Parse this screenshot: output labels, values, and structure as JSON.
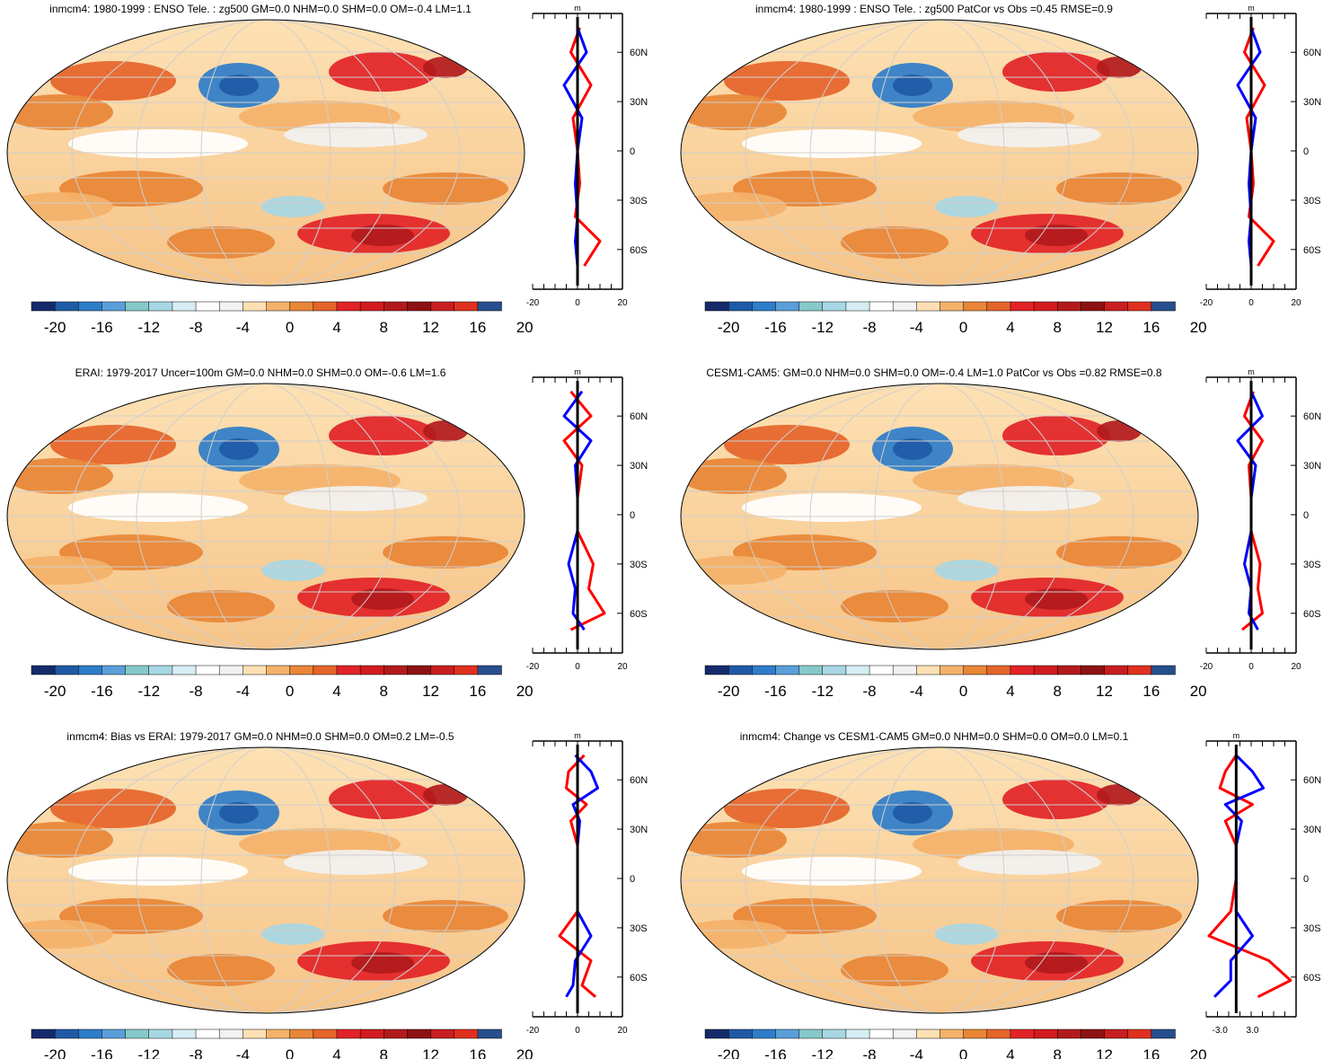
{
  "colorbar": {
    "tick_labels": [
      "-20",
      "-16",
      "-12",
      "-8",
      "-4",
      "0",
      "4",
      "8",
      "12",
      "16",
      "20"
    ],
    "colors": [
      "#152a6b",
      "#1f5aa6",
      "#2e7dc9",
      "#5a9fd9",
      "#86c9c9",
      "#a7d7e4",
      "#d6eef3",
      "#ffffff",
      "#f2f2f2",
      "#fde1b4",
      "#f4b26a",
      "#e88636",
      "#e5642a",
      "#e22327",
      "#d11b1f",
      "#b21a1c",
      "#8e1213",
      "#c81e1f",
      "#e0301f",
      "#274f8d"
    ]
  },
  "profile_axes": {
    "unit_label": "m",
    "lat_ticks": [
      "60N",
      "30N",
      "0",
      "30S",
      "60S"
    ]
  },
  "chart_data": [
    {
      "type": "heatmap",
      "title": "inmcm4: 1980-1999 : ENSO Tele. : zg500 GM=0.0 NHM=0.0 SHM=0.0 OM=-0.4 LM=1.1",
      "profile_xticks": [
        "-20",
        "0",
        "20"
      ],
      "profile_xlim": [
        -20,
        20
      ],
      "series": [
        {
          "name": "",
          "color": "#ff0000",
          "lat": [
            75,
            60,
            40,
            20,
            0,
            -20,
            -40,
            -55,
            -70
          ],
          "values": [
            1,
            -3,
            6,
            -2,
            0,
            1,
            -1,
            10,
            3
          ]
        },
        {
          "name": "",
          "color": "#0000ff",
          "lat": [
            75,
            60,
            40,
            20,
            0,
            -20,
            -40,
            -55,
            -70
          ],
          "values": [
            0,
            4,
            -6,
            2,
            0,
            -1,
            0,
            -1,
            0
          ]
        }
      ]
    },
    {
      "type": "heatmap",
      "title": "inmcm4: 1980-1999 : ENSO Tele. : zg500 PatCor vs Obs =0.45 RMSE=0.9",
      "profile_xticks": [
        "-20",
        "0",
        "20"
      ],
      "profile_xlim": [
        -20,
        20
      ],
      "series": [
        {
          "name": "",
          "color": "#ff0000",
          "lat": [
            75,
            60,
            40,
            20,
            0,
            -20,
            -40,
            -55,
            -70
          ],
          "values": [
            1,
            -3,
            6,
            -2,
            0,
            1,
            -1,
            10,
            3
          ]
        },
        {
          "name": "",
          "color": "#0000ff",
          "lat": [
            75,
            60,
            40,
            20,
            0,
            -20,
            -40,
            -55,
            -70
          ],
          "values": [
            0,
            4,
            -6,
            2,
            0,
            -1,
            0,
            -1,
            0
          ]
        }
      ]
    },
    {
      "type": "heatmap",
      "title": "ERAI: 1979-2017 Uncer=100m GM=0.0 NHM=0.0 SHM=0.0 OM=-0.6 LM=1.6",
      "profile_xticks": [
        "-20",
        "0",
        "20"
      ],
      "profile_xlim": [
        -20,
        20
      ],
      "series": [
        {
          "name": "",
          "color": "#ff0000",
          "lat": [
            75,
            60,
            45,
            30,
            10,
            -10,
            -30,
            -45,
            -60,
            -70
          ],
          "values": [
            -3,
            6,
            -6,
            2,
            0,
            0,
            7,
            5,
            12,
            -3
          ]
        },
        {
          "name": "",
          "color": "#0000ff",
          "lat": [
            75,
            60,
            45,
            30,
            10,
            -10,
            -30,
            -45,
            -60,
            -70
          ],
          "values": [
            2,
            -6,
            6,
            -1,
            0,
            0,
            -4,
            -1,
            -2,
            3
          ]
        }
      ]
    },
    {
      "type": "heatmap",
      "title": "CESM1-CAM5: GM=0.0 NHM=0.0 SHM=0.0 OM=-0.4 LM=1.0 PatCor vs Obs =0.82 RMSE=0.8",
      "profile_xticks": [
        "-20",
        "0",
        "20"
      ],
      "profile_xlim": [
        -20,
        20
      ],
      "series": [
        {
          "name": "",
          "color": "#ff0000",
          "lat": [
            75,
            60,
            45,
            30,
            10,
            -10,
            -30,
            -45,
            -60,
            -70
          ],
          "values": [
            1,
            -3,
            5,
            -1,
            0,
            0,
            4,
            3,
            5,
            -4
          ]
        },
        {
          "name": "",
          "color": "#0000ff",
          "lat": [
            75,
            60,
            45,
            30,
            10,
            -10,
            -30,
            -45,
            -60,
            -70
          ],
          "values": [
            0,
            5,
            -6,
            2,
            0,
            0,
            -3,
            0,
            -1,
            3
          ]
        }
      ]
    },
    {
      "type": "heatmap",
      "title": "inmcm4: Bias vs ERAI: 1979-2017 GM=0.0 NHM=0.0 SHM=0.0 OM=0.2 LM=-0.5",
      "profile_xticks": [
        "-20",
        "0",
        "20"
      ],
      "profile_xlim": [
        -20,
        20
      ],
      "series": [
        {
          "name": "",
          "color": "#ff0000",
          "lat": [
            75,
            65,
            55,
            45,
            35,
            20,
            0,
            -20,
            -35,
            -50,
            -65,
            -72
          ],
          "values": [
            3,
            -4,
            -5,
            4,
            -3,
            0,
            0,
            0,
            -8,
            6,
            2,
            8
          ]
        },
        {
          "name": "",
          "color": "#0000ff",
          "lat": [
            75,
            65,
            55,
            45,
            35,
            20,
            0,
            -20,
            -35,
            -50,
            -65,
            -72
          ],
          "values": [
            -1,
            6,
            9,
            -2,
            1,
            0,
            0,
            0,
            6,
            -1,
            -2,
            -5
          ]
        }
      ]
    },
    {
      "type": "heatmap",
      "title": "inmcm4: Change vs CESM1-CAM5 GM=0.0 NHM=0.0 SHM=0.0 OM=0.0 LM=0.1",
      "profile_xticks": [
        "-3.0",
        "3.0"
      ],
      "profile_xlim": [
        -5.5,
        11
      ],
      "series": [
        {
          "name": "",
          "color": "#ff0000",
          "lat": [
            75,
            65,
            55,
            45,
            35,
            20,
            0,
            -20,
            -35,
            -50,
            -62,
            -72
          ],
          "values": [
            0,
            -2,
            -3,
            3,
            -2,
            0,
            0,
            -1,
            -5,
            6,
            10,
            4
          ]
        },
        {
          "name": "",
          "color": "#0000ff",
          "lat": [
            75,
            65,
            55,
            45,
            35,
            20,
            0,
            -20,
            -35,
            -50,
            -62,
            -72
          ],
          "values": [
            0,
            3,
            5,
            -2,
            1,
            0,
            0,
            0,
            3,
            -1,
            -1,
            -4
          ]
        }
      ]
    }
  ]
}
